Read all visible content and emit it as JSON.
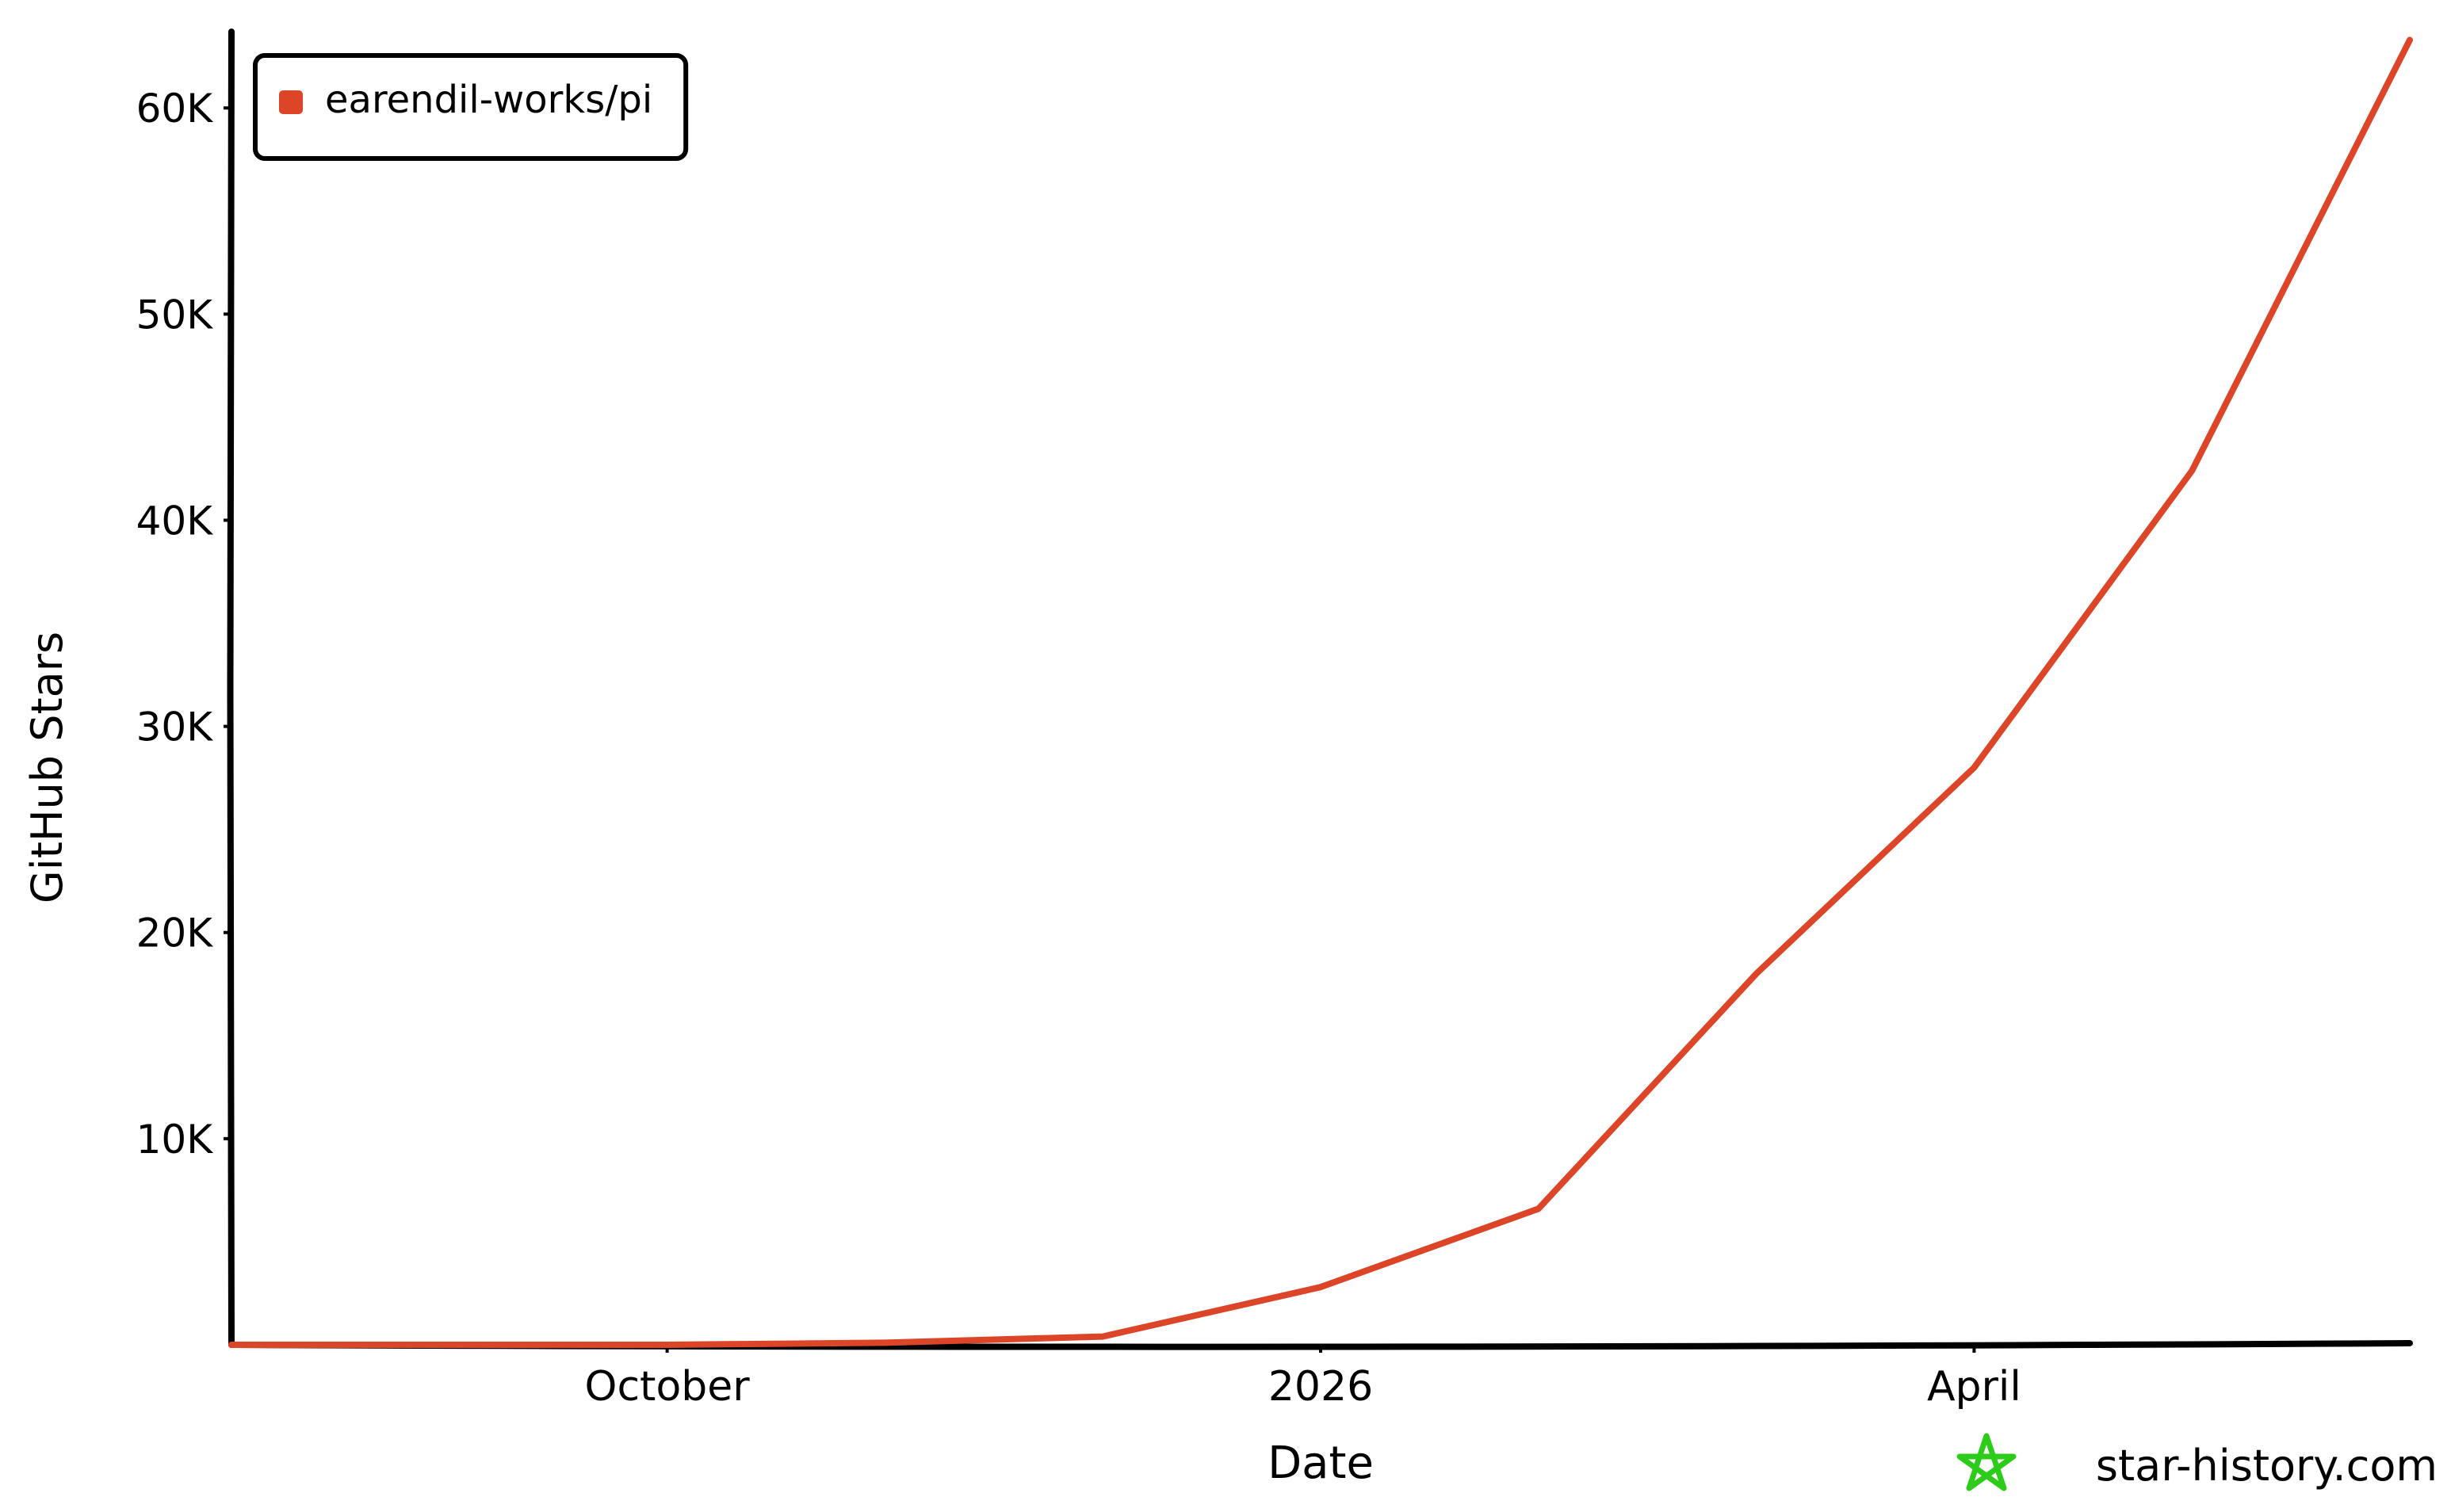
{
  "chart_data": {
    "type": "line",
    "x_label": "Date",
    "y_label": "GitHub Stars",
    "watermark": "star-history.com",
    "x": [
      "2025-08",
      "2025-09",
      "2025-10",
      "2025-11",
      "2025-12",
      "2026-01",
      "2026-02",
      "2026-03",
      "2026-04",
      "2026-05",
      "2026-06"
    ],
    "series": [
      {
        "name": "earendil-works/pi",
        "color": "#dd4528",
        "values": [
          0,
          0,
          0,
          100,
          400,
          2800,
          6600,
          18000,
          28000,
          42400,
          63300
        ]
      }
    ],
    "xlim": [
      "2025-08",
      "2026-06"
    ],
    "xticks": [
      {
        "value": "2025-10",
        "label": "October"
      },
      {
        "value": "2026-01",
        "label": "2026"
      },
      {
        "value": "2026-04",
        "label": "April"
      }
    ],
    "ylim": [
      0,
      63700
    ],
    "yticks": [
      {
        "value": 10000,
        "label": "10K"
      },
      {
        "value": 20000,
        "label": "20K"
      },
      {
        "value": 30000,
        "label": "30K"
      },
      {
        "value": 40000,
        "label": "40K"
      },
      {
        "value": 50000,
        "label": "50K"
      },
      {
        "value": 60000,
        "label": "60K"
      }
    ],
    "legend": "top-left"
  }
}
